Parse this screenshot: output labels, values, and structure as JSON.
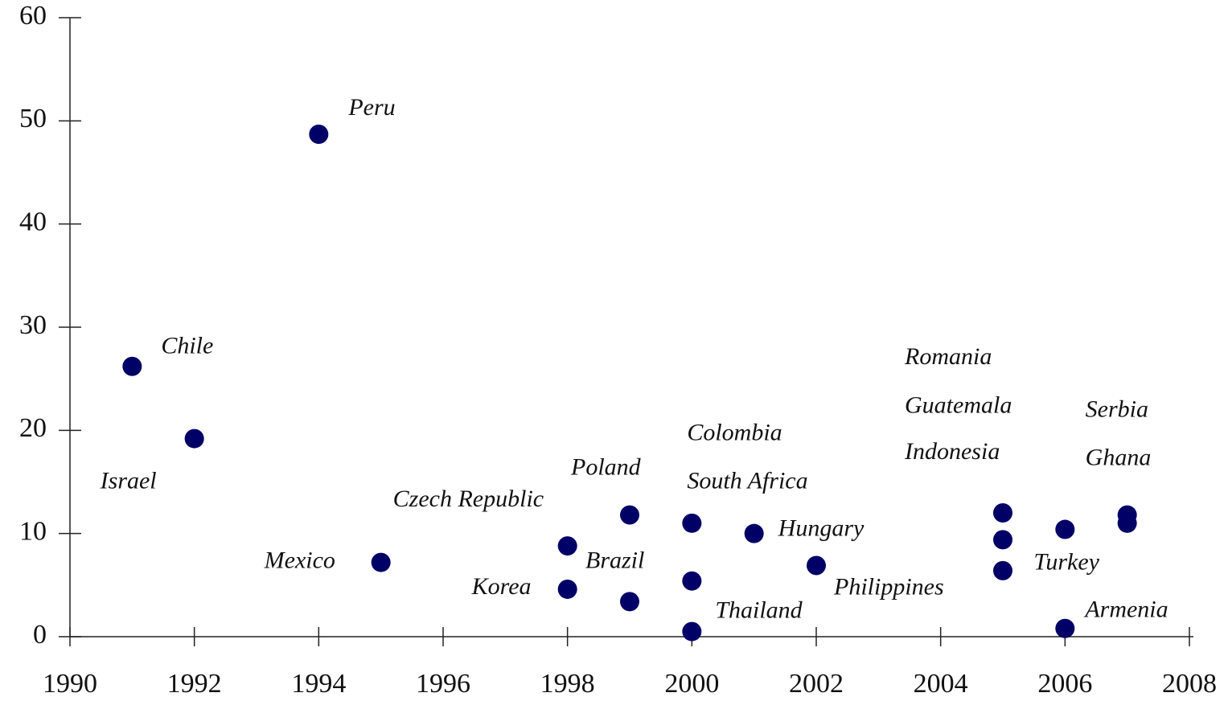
{
  "chart_data": {
    "type": "scatter",
    "point_labels": [
      "Chile",
      "Israel",
      "Peru",
      "Mexico",
      "Czech Republic",
      "Korea",
      "Poland",
      "Brazil",
      "Colombia",
      "South Africa",
      "Thailand",
      "Hungary",
      "Philippines",
      "Romania",
      "Guatemala",
      "Indonesia",
      "Turkey",
      "Armenia",
      "Serbia",
      "Ghana"
    ],
    "x": [
      1991,
      1992,
      1994,
      1995,
      1998,
      1998,
      1999,
      1999,
      2000,
      2000,
      2000,
      2001,
      2002,
      2005,
      2005,
      2005,
      2006,
      2006,
      2007,
      2007
    ],
    "values": [
      26.2,
      19.2,
      48.7,
      7.2,
      8.8,
      4.6,
      11.8,
      3.4,
      11.0,
      5.4,
      0.5,
      10.0,
      6.9,
      12.0,
      9.4,
      6.4,
      10.4,
      0.8,
      11.8,
      11.0
    ],
    "color": "#000066",
    "xlim": [
      1990,
      2008
    ],
    "xticks": [
      1990,
      1992,
      1994,
      1996,
      1998,
      2000,
      2002,
      2004,
      2006,
      2008
    ],
    "ylim": [
      0,
      60
    ],
    "yticks": [
      0,
      10,
      20,
      30,
      40,
      50,
      60
    ]
  }
}
